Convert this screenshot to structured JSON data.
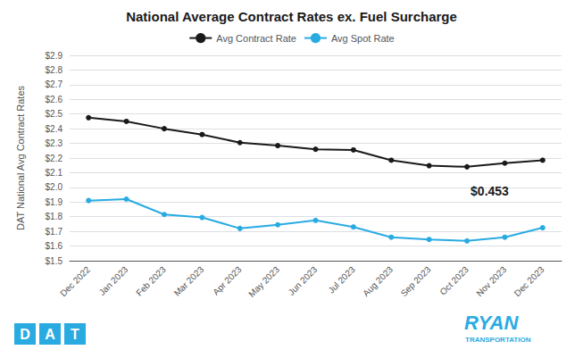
{
  "chart_data": {
    "type": "line",
    "title": "National Average Contract Rates ex. Fuel Surcharge",
    "ylabel": "DAT National Avg Contract Rates",
    "categories": [
      "Dec 2022",
      "Jan 2023",
      "Feb 2023",
      "Mar 2023",
      "Apr 2023",
      "May 2023",
      "Jun 2023",
      "Jul 2023",
      "Aug 2023",
      "Sep 2023",
      "Oct 2023",
      "Nov 2023",
      "Dec 2023"
    ],
    "series": [
      {
        "name": "Avg Contract Rate",
        "color": "#1a1a1a",
        "marker": "circle",
        "values": [
          2.475,
          2.45,
          2.4,
          2.36,
          2.305,
          2.285,
          2.26,
          2.255,
          2.185,
          2.148,
          2.14,
          2.165,
          2.185
        ]
      },
      {
        "name": "Avg Spot Rate",
        "color": "#29abe2",
        "marker": "circle",
        "values": [
          1.91,
          1.92,
          1.815,
          1.795,
          1.72,
          1.745,
          1.775,
          1.73,
          1.66,
          1.645,
          1.635,
          1.66,
          1.725
        ]
      }
    ],
    "ylim": [
      1.5,
      2.9
    ],
    "yticks": [
      {
        "value": 1.5,
        "label": "$1.5"
      },
      {
        "value": 1.6,
        "label": "$1.6"
      },
      {
        "value": 1.7,
        "label": "$1.7"
      },
      {
        "value": 1.8,
        "label": "$1.8"
      },
      {
        "value": 1.9,
        "label": "$1.9"
      },
      {
        "value": 2.0,
        "label": "$2.0"
      },
      {
        "value": 2.1,
        "label": "$2.1"
      },
      {
        "value": 2.2,
        "label": "$2.2"
      },
      {
        "value": 2.3,
        "label": "$2.3"
      },
      {
        "value": 2.4,
        "label": "$2.4"
      },
      {
        "value": 2.5,
        "label": "$2.5"
      },
      {
        "value": 2.6,
        "label": "$2.6"
      },
      {
        "value": 2.7,
        "label": "$2.7"
      },
      {
        "value": 2.8,
        "label": "$2.8"
      },
      {
        "value": 2.9,
        "label": "$2.9"
      }
    ],
    "grid": true,
    "legend": "top",
    "annotations": [
      {
        "text": "$0.453",
        "x": 10.6,
        "y": 1.975
      }
    ],
    "footer_left": {
      "letters": [
        "D",
        "A",
        "T"
      ],
      "color": "#29abe2"
    },
    "footer_right": {
      "text": "RYAN",
      "subtext": "TRANSPORTATION",
      "color": "#29abe2"
    }
  }
}
